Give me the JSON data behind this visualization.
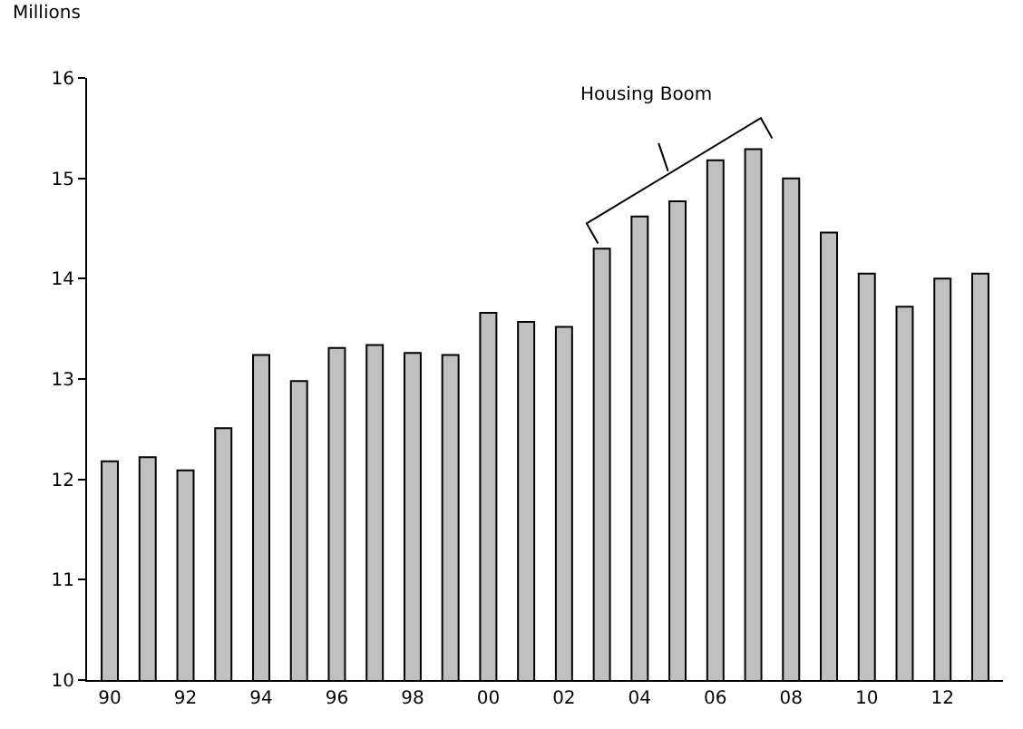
{
  "chart_data": {
    "type": "bar",
    "ylabel": "Millions",
    "categories": [
      "90",
      null,
      "92",
      null,
      "94",
      null,
      "96",
      null,
      "98",
      null,
      "00",
      null,
      "02",
      null,
      "04",
      null,
      "06",
      null,
      "08",
      null,
      "10",
      null,
      "12",
      null
    ],
    "series": [
      {
        "color": "#c0c0c0",
        "values": [
          12.18,
          12.22,
          12.09,
          12.51,
          13.24,
          12.98,
          13.31,
          13.34,
          13.26,
          13.24,
          13.66,
          13.57,
          13.52,
          14.3,
          14.62,
          14.77,
          15.18,
          15.29,
          15.0,
          14.46,
          14.05,
          13.72,
          14.0,
          14.05
        ]
      }
    ],
    "ylim": [
      10,
      16
    ],
    "yticks": [
      10,
      11,
      12,
      13,
      14,
      15,
      16
    ],
    "annotations": [
      "Housing Boom"
    ]
  }
}
